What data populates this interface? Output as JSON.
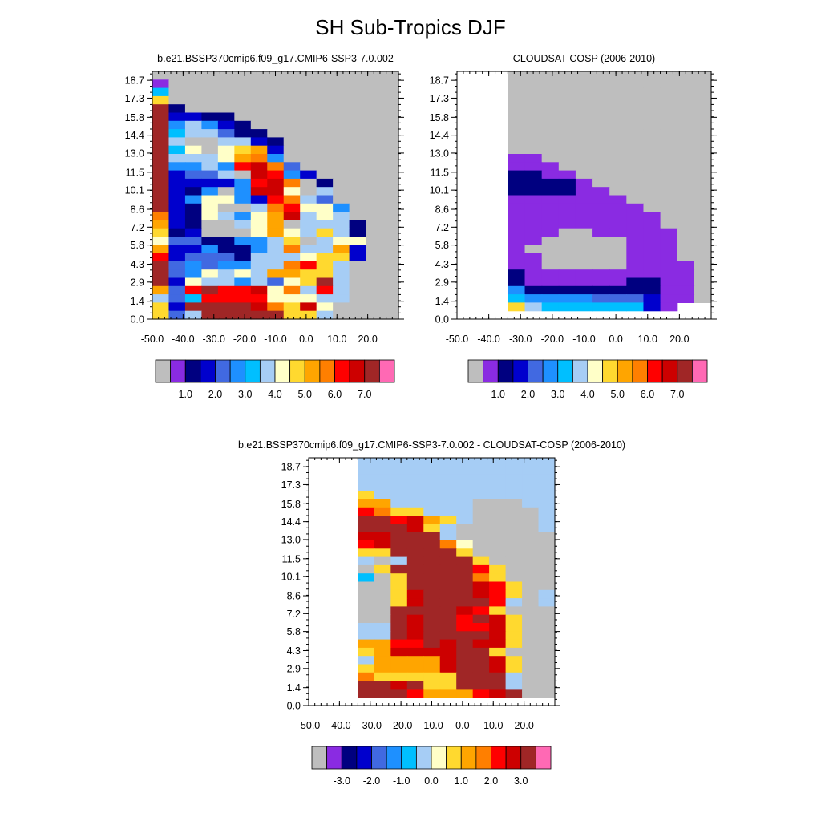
{
  "title": "SH Sub-Tropics DJF",
  "chart_data": [
    {
      "type": "heatmap",
      "title": "b.e21.BSSP370cmip6.f09_g17.CMIP6-SSP3-7.0.002",
      "x_ticks": [
        "-50.0",
        "-40.0",
        "-30.0",
        "-20.0",
        "-10.0",
        "0.0",
        "10.0",
        "20.0"
      ],
      "y_ticks": [
        "0.0",
        "1.4",
        "2.9",
        "4.3",
        "5.8",
        "7.2",
        "8.6",
        "10.1",
        "11.5",
        "13.0",
        "14.4",
        "15.8",
        "17.3",
        "18.7"
      ],
      "xlim": [
        -50,
        30
      ],
      "ylim": [
        0,
        19.4
      ],
      "colorbar_labels": [
        "1.0",
        "2.0",
        "3.0",
        "4.0",
        "5.0",
        "6.0",
        "7.0"
      ],
      "grid": [
        "GGGGGGGGGGGGGGG",
        "AGGGGGGGGGGGGGG",
        "FGGGGGGGGGGGGGG",
        "JGGGGGGGGGGGGGG",
        "OBGGGGGGGGGGGGG",
        "OCCBBGGGGGGGGGG",
        "OEHECBGGGGGGGGG",
        "OFHHDBBGGGGGGGG",
        "OHGGHHCBGGGGGGG",
        "OFIGIJKCGGGGGGG",
        "OHHHIKLEGGGGGGG",
        "OEEHEMNLDGGGGGG",
        "OCDDHGNMECGGGGG",
        "OCCCCEMNLGBGGGG",
        "OCBEGENNIGHGGGG",
        "OCEIIECMLHDGGGG",
        "OCBIGGHLMIIEGGG",
        "LCBIHEIKNHIHGGG",
        "KCBGGHIKGHHHBGG",
        "JBCGGGIKIHJHBGG",
        "IDDBBEEHJGHIIGG",
        "KCCEBBEHLHHKCGG",
        "MCDDDBHHHIJJCGG",
        "ODEDEEHHLMJHGGG",
        "ODEIHIHKKJJHGGG",
        "OCIHHEHDIJOHGGG",
        "KDMOMMNILHMHGGG",
        "HDFMMMMIIIHHGGG",
        "JCOOOONLJNIGGGG",
        "JDHOOOOOJJHGGGG"
      ]
    },
    {
      "type": "heatmap",
      "title": "CLOUDSAT-COSP (2006-2010)",
      "x_ticks": [
        "-50.0",
        "-40.0",
        "-30.0",
        "-20.0",
        "-10.0",
        "0.0",
        "10.0",
        "20.0"
      ],
      "y_ticks": [
        "0.0",
        "1.4",
        "2.9",
        "4.3",
        "5.8",
        "7.2",
        "8.6",
        "10.1",
        "11.5",
        "13.0",
        "14.4",
        "15.8",
        "17.3",
        "18.7"
      ],
      "xlim": [
        -50,
        30
      ],
      "ylim": [
        0,
        19.4
      ],
      "colorbar_labels": [
        "1.0",
        "2.0",
        "3.0",
        "4.0",
        "5.0",
        "6.0",
        "7.0"
      ],
      "grid": [
        "WWWGGGGGGGGGGGG",
        "WWWGGGGGGGGGGGG",
        "WWWGGGGGGGGGGGG",
        "WWWGGGGGGGGGGGG",
        "WWWGGGGGGGGGGGG",
        "WWWGGGGGGGGGGGG",
        "WWWGGGGGGGGGGGG",
        "WWWGGGGGGGGGGGG",
        "WWWGGGGGGGGGGGG",
        "WWWGGGGGGGGGGGG",
        "WWWAAGGGGGGGGGG",
        "WWWAAAGGGGGGGGG",
        "WWWBBAAGGGGGGGG",
        "WWWBBBBAGGGGGGG",
        "WWWBBBBAAGGGGGG",
        "WWWAAAAAAAGGGGG",
        "WWWAAAAAAAAGGGG",
        "WWWAAAAAAAAAGGG",
        "WWWAAAAAAAAAGGG",
        "WWWAAAGGAAAAAGG",
        "WWWAAGGGGGAAAGG",
        "WWWAGGGGGGAAAGG",
        "WWWAAGGGGGAAAGG",
        "WWWAAGGGGGAAAAG",
        "WWWBAAAAAAAAAAG",
        "WWWBAAAAAABBAAG",
        "WWWEBBBBBBBBAAG",
        "WWWFEEEEDDDCAAG",
        "WWWJHFFFFFFCAWW",
        "WWWWWWWWWWWWWWW"
      ]
    },
    {
      "type": "heatmap",
      "title": "b.e21.BSSP370cmip6.f09_g17.CMIP6-SSP3-7.0.002 - CLOUDSAT-COSP (2006-2010)",
      "x_ticks": [
        "-50.0",
        "-40.0",
        "-30.0",
        "-20.0",
        "-10.0",
        "0.0",
        "10.0",
        "20.0"
      ],
      "y_ticks": [
        "0.0",
        "1.4",
        "2.9",
        "4.3",
        "5.8",
        "7.2",
        "8.6",
        "10.1",
        "11.5",
        "13.0",
        "14.4",
        "15.8",
        "17.3",
        "18.7"
      ],
      "xlim": [
        -50,
        30
      ],
      "ylim": [
        0,
        19.4
      ],
      "colorbar_labels": [
        "-3.0",
        "-2.0",
        "-1.0",
        "0.0",
        "1.0",
        "2.0",
        "3.0"
      ],
      "grid": [
        "WWWHHHHHHHHHHHH",
        "WWWHHHHHHHHHHHH",
        "WWWHHHHHHHHHHHH",
        "WWWHHHHHHHHHHHH",
        "WWWJHHHHHHHHHHH",
        "WWWKKHHHHHGGGHH",
        "WWWMLJJHHHGGGGH",
        "WWWOOMNKJHGGGGH",
        "WWWOOONJHGGGGGH",
        "WWWNNOOOHGGGGGG",
        "WWWMNOOOLIGGGGG",
        "WWWJJOOOOJGGGGG",
        "WWWHGHOOOOJGGGG",
        "WWWGJOOOOOMJGGG",
        "WWWFGJOOOOLJGGG",
        "WWWGGJOOOONMJGG",
        "WWWGGJNOOONMJGH",
        "WWWGGJNOOOOMHGH",
        "WWWGGOOOONMJGGG",
        "WWWGGONOOMONJGG",
        "WWWHHONOOMMNJGG",
        "WWWHHONOOOONJGG",
        "WWWKKMMONONNJGG",
        "WWWJKNNNNOOJGGG",
        "WWWHKKKKNOONJGG",
        "WWWJKKKKNOONJGG",
        "WWWLJJJJJOOOHGG",
        "WWWOONOJJOOOHGG",
        "WWWOOOMKKKMNOGG",
        "WWWWWWWWWWWWWWW"
      ]
    }
  ],
  "palette": {
    "G": "#bebebe",
    "A": "#8a2be2",
    "B": "#000080",
    "C": "#0000cd",
    "D": "#4169e1",
    "E": "#1e90ff",
    "F": "#00bfff",
    "H": "#a6cdf5",
    "I": "#ffffc8",
    "J": "#ffd92f",
    "K": "#ffa500",
    "L": "#ff7f00",
    "M": "#ff0000",
    "N": "#cd0000",
    "O": "#a02626",
    "P": "#ff69b4",
    "W": "#ffffff",
    "Q": "#8b1a1a",
    "R": "#ff6eb4"
  }
}
